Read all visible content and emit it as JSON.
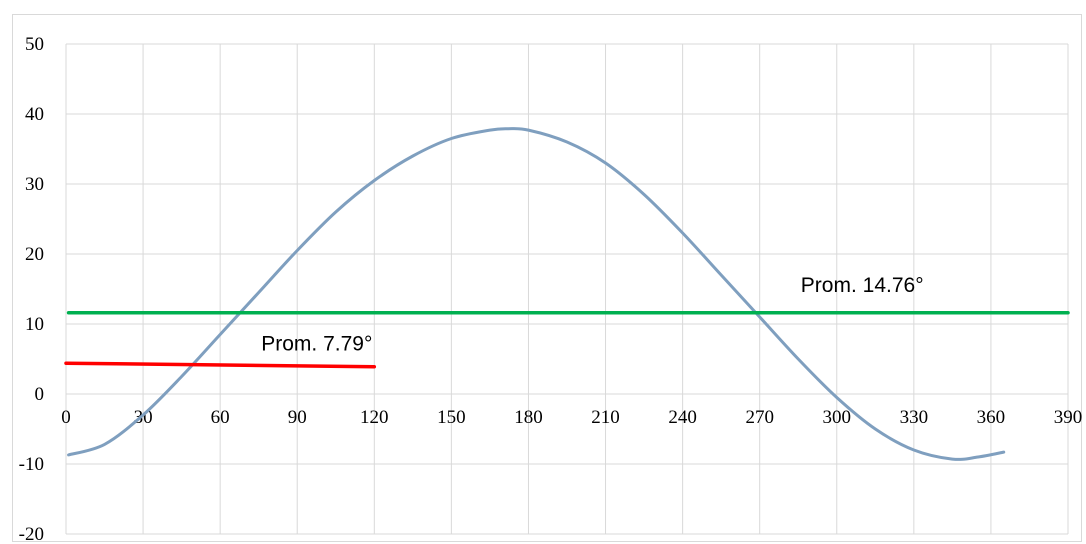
{
  "chart_data": {
    "type": "line",
    "title": "",
    "xlabel": "",
    "ylabel": "",
    "xlim": [
      0,
      390
    ],
    "ylim": [
      -20,
      50
    ],
    "x_ticks": [
      0,
      30,
      60,
      90,
      120,
      150,
      180,
      210,
      240,
      270,
      300,
      330,
      360,
      390
    ],
    "y_ticks": [
      -20,
      -10,
      0,
      10,
      20,
      30,
      40,
      50
    ],
    "grid": true,
    "legend": "none",
    "series": [
      {
        "color": "#7f9fbf",
        "x": [
          1,
          15,
          30,
          45,
          60,
          75,
          90,
          105,
          120,
          135,
          150,
          165,
          172,
          180,
          195,
          210,
          225,
          240,
          255,
          270,
          285,
          300,
          315,
          330,
          345,
          355,
          365
        ],
        "y": [
          -8.7,
          -7.2,
          -3.0,
          2.5,
          8.5,
          14.5,
          20.5,
          26.0,
          30.5,
          34.0,
          36.5,
          37.7,
          37.9,
          37.7,
          36.0,
          33.0,
          28.5,
          23.0,
          17.0,
          11.0,
          5.0,
          -0.5,
          -5.0,
          -8.0,
          -9.3,
          -9.0,
          -8.3
        ]
      },
      {
        "color": "#00b050",
        "x": [
          1,
          390
        ],
        "y": [
          11.6,
          11.6
        ]
      },
      {
        "color": "#ff0000",
        "x": [
          0,
          120
        ],
        "y": [
          4.4,
          3.9
        ]
      }
    ],
    "annotations": [
      {
        "text": "Prom. 14.76°",
        "x": 286,
        "y": 14.6
      },
      {
        "text": "Prom. 7.79°",
        "x": 76,
        "y": 6.2
      }
    ]
  }
}
